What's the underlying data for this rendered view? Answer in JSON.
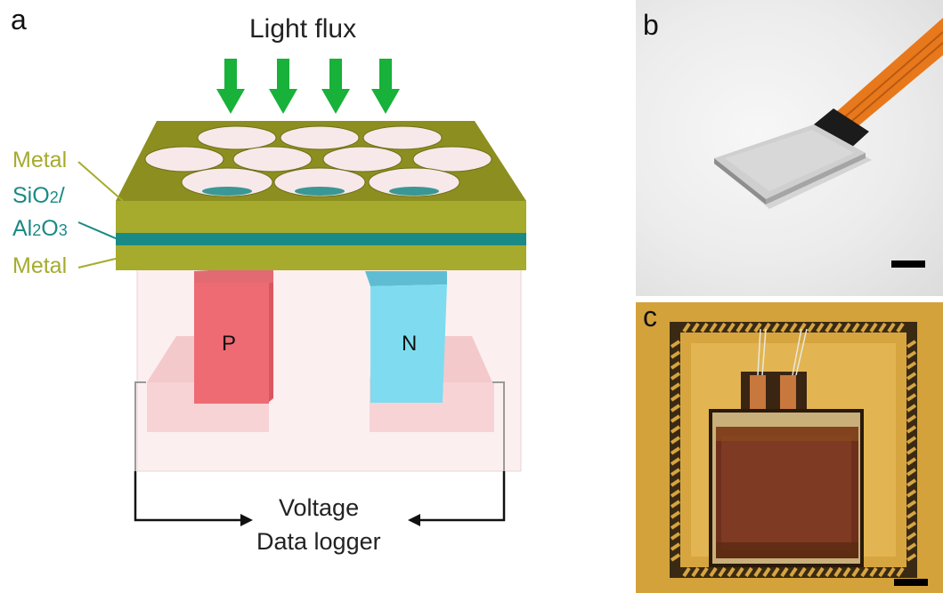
{
  "panels": {
    "a": "a",
    "b": "b",
    "c": "c"
  },
  "diagram": {
    "light_label": "Light flux",
    "metal_top": "Metal",
    "oxide_line1": "SiO2/",
    "oxide_line2": "Al2O3",
    "metal_bottom": "Metal",
    "p_label": "P",
    "n_label": "N",
    "voltage_label": "Voltage",
    "logger_label": "Data logger"
  },
  "colors": {
    "arrow_green": "#18b13a",
    "metal": "#a6ab2e",
    "metal_top": "#8c8f1f",
    "oxide": "#1a8a86",
    "p_block": "#ee6b73",
    "n_block": "#7fdcf0",
    "pad_pink": "#f6c8cb"
  }
}
